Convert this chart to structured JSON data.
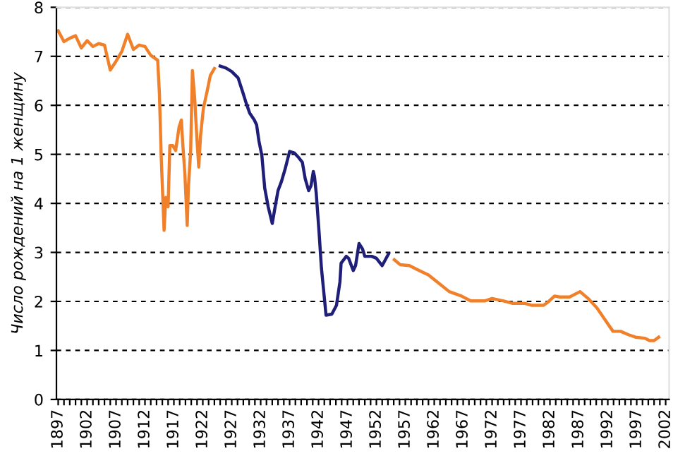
{
  "chart_data": {
    "type": "line",
    "ylabel": "Число рождений на 1 женщину",
    "series": [
      {
        "color": "#f0802a",
        "x": [
          1897,
          1898,
          1899,
          1900,
          1901,
          1902,
          1903,
          1904,
          1905,
          1906,
          1907,
          1908,
          1909,
          1910,
          1911,
          1912,
          1913,
          1914.2,
          1914.5,
          1914.8,
          1915.3,
          1915.6,
          1916.0,
          1916.3,
          1916.8,
          1917.3,
          1917.9,
          1918.3,
          1918.5,
          1918.9,
          1919.3,
          1919.5,
          1919.9,
          1920.2,
          1920.6,
          1921.0,
          1921.3,
          1921.6,
          1922.1,
          1922.8,
          1923.3,
          1924.0
        ],
        "values": [
          7.52,
          7.3,
          7.37,
          7.42,
          7.17,
          7.32,
          7.2,
          7.26,
          7.23,
          6.72,
          6.9,
          7.1,
          7.45,
          7.14,
          7.23,
          7.2,
          7.02,
          6.92,
          6.23,
          4.98,
          3.45,
          4.12,
          3.93,
          5.18,
          5.18,
          5.08,
          5.56,
          5.7,
          5.27,
          4.6,
          3.55,
          4.31,
          5.08,
          6.71,
          6.13,
          5.27,
          4.74,
          5.37,
          5.94,
          6.32,
          6.61,
          6.75
        ]
      },
      {
        "color": "#1f1f7a",
        "x": [
          1925.0,
          1926.0,
          1927.0,
          1928.1,
          1928.9,
          1929.4,
          1930.1,
          1930.9,
          1931.3,
          1931.7,
          1932.2,
          1932.7,
          1933.3,
          1934.0,
          1934.5,
          1935.0,
          1935.6,
          1936.2,
          1937.0,
          1937.8,
          1938.6,
          1939.2,
          1939.7,
          1940.3,
          1940.7,
          1941.1,
          1941.3,
          1941.6,
          1942.1,
          1942.5,
          1942.9,
          1943.3,
          1944.3,
          1945.1,
          1945.7,
          1945.9,
          1946.8,
          1947.2,
          1948.0,
          1948.4,
          1949.0,
          1949.6,
          1950.0,
          1951.2,
          1952.0,
          1953.0,
          1954.1
        ],
        "values": [
          6.8,
          6.76,
          6.69,
          6.56,
          6.27,
          6.08,
          5.84,
          5.7,
          5.6,
          5.27,
          4.98,
          4.31,
          3.93,
          3.59,
          3.93,
          4.26,
          4.45,
          4.69,
          5.06,
          5.03,
          4.93,
          4.84,
          4.5,
          4.26,
          4.36,
          4.65,
          4.55,
          4.21,
          3.4,
          2.68,
          2.2,
          1.72,
          1.74,
          1.92,
          2.4,
          2.78,
          2.92,
          2.88,
          2.63,
          2.73,
          3.18,
          3.07,
          2.92,
          2.92,
          2.88,
          2.73,
          2.97
        ]
      },
      {
        "color": "#f0802a",
        "x": [
          1955.1,
          1956.1,
          1957.7,
          1959.4,
          1961.0,
          1962.6,
          1964.6,
          1966.7,
          1968.3,
          1970.7,
          1972.0,
          1974.0,
          1975.6,
          1977.7,
          1978.9,
          1980.9,
          1981.7,
          1982.8,
          1983.7,
          1985.4,
          1987.2,
          1988.6,
          1990.1,
          1991.5,
          1992.9,
          1994.2,
          1995.6,
          1996.8,
          1998.4,
          1999.2,
          2000.0,
          2000.8
        ],
        "values": [
          2.85,
          2.75,
          2.73,
          2.63,
          2.54,
          2.39,
          2.2,
          2.11,
          2.01,
          2.01,
          2.06,
          2.01,
          1.96,
          1.96,
          1.92,
          1.92,
          1.99,
          2.11,
          2.09,
          2.09,
          2.2,
          2.06,
          1.87,
          1.63,
          1.39,
          1.39,
          1.32,
          1.27,
          1.25,
          1.2,
          1.2,
          1.27
        ]
      }
    ],
    "xlim": [
      1896.7,
      2002.6
    ],
    "xticks": [
      1897,
      {
        "value": 1898,
        "label": null
      },
      {
        "value": 1899,
        "label": null
      },
      {
        "value": 1900,
        "label": null
      },
      {
        "value": 1901,
        "label": null
      },
      1902,
      {
        "value": 1903,
        "label": null
      },
      {
        "value": 1904,
        "label": null
      },
      {
        "value": 1905,
        "label": null
      },
      {
        "value": 1906,
        "label": null
      },
      1907,
      {
        "value": 1908,
        "label": null
      },
      {
        "value": 1909,
        "label": null
      },
      {
        "value": 1910,
        "label": null
      },
      {
        "value": 1911,
        "label": null
      },
      1912,
      {
        "value": 1913,
        "label": null
      },
      {
        "value": 1914,
        "label": null
      },
      {
        "value": 1915,
        "label": null
      },
      {
        "value": 1916,
        "label": null
      },
      1917,
      {
        "value": 1918,
        "label": null
      },
      {
        "value": 1919,
        "label": null
      },
      {
        "value": 1920,
        "label": null
      },
      {
        "value": 1921,
        "label": null
      },
      1922,
      {
        "value": 1923,
        "label": null
      },
      {
        "value": 1924,
        "label": null
      },
      {
        "value": 1925,
        "label": null
      },
      {
        "value": 1926,
        "label": null
      },
      1927,
      {
        "value": 1928,
        "label": null
      },
      {
        "value": 1929,
        "label": null
      },
      {
        "value": 1930,
        "label": null
      },
      {
        "value": 1931,
        "label": null
      },
      1932,
      {
        "value": 1933,
        "label": null
      },
      {
        "value": 1934,
        "label": null
      },
      {
        "value": 1935,
        "label": null
      },
      {
        "value": 1936,
        "label": null
      },
      1937,
      {
        "value": 1938,
        "label": null
      },
      {
        "value": 1939,
        "label": null
      },
      {
        "value": 1940,
        "label": null
      },
      {
        "value": 1941,
        "label": null
      },
      1942,
      {
        "value": 1943,
        "label": null
      },
      {
        "value": 1944,
        "label": null
      },
      {
        "value": 1945,
        "label": null
      },
      {
        "value": 1946,
        "label": null
      },
      1947,
      {
        "value": 1948,
        "label": null
      },
      {
        "value": 1949,
        "label": null
      },
      {
        "value": 1950,
        "label": null
      },
      {
        "value": 1951,
        "label": null
      },
      1952,
      {
        "value": 1953,
        "label": null
      },
      {
        "value": 1954,
        "label": null
      },
      {
        "value": 1955,
        "label": null
      },
      {
        "value": 1956,
        "label": null
      },
      1957,
      {
        "value": 1958,
        "label": null
      },
      {
        "value": 1959,
        "label": null
      },
      {
        "value": 1960,
        "label": null
      },
      {
        "value": 1961,
        "label": null
      },
      1962,
      {
        "value": 1963,
        "label": null
      },
      {
        "value": 1964,
        "label": null
      },
      {
        "value": 1965,
        "label": null
      },
      {
        "value": 1966,
        "label": null
      },
      1967,
      {
        "value": 1968,
        "label": null
      },
      {
        "value": 1969,
        "label": null
      },
      {
        "value": 1970,
        "label": null
      },
      {
        "value": 1971,
        "label": null
      },
      1972,
      {
        "value": 1973,
        "label": null
      },
      {
        "value": 1974,
        "label": null
      },
      {
        "value": 1975,
        "label": null
      },
      {
        "value": 1976,
        "label": null
      },
      1977,
      {
        "value": 1978,
        "label": null
      },
      {
        "value": 1979,
        "label": null
      },
      {
        "value": 1980,
        "label": null
      },
      {
        "value": 1981,
        "label": null
      },
      1982,
      {
        "value": 1983,
        "label": null
      },
      {
        "value": 1984,
        "label": null
      },
      {
        "value": 1985,
        "label": null
      },
      {
        "value": 1986,
        "label": null
      },
      1987,
      {
        "value": 1988,
        "label": null
      },
      {
        "value": 1989,
        "label": null
      },
      {
        "value": 1990,
        "label": null
      },
      {
        "value": 1991,
        "label": null
      },
      1992,
      {
        "value": 1993,
        "label": null
      },
      {
        "value": 1994,
        "label": null
      },
      {
        "value": 1995,
        "label": null
      },
      {
        "value": 1996,
        "label": null
      },
      1997,
      {
        "value": 1998,
        "label": null
      },
      {
        "value": 1999,
        "label": null
      },
      {
        "value": 2000,
        "label": null
      },
      {
        "value": 2001,
        "label": null
      },
      2002
    ],
    "ylim": [
      0,
      8
    ],
    "yticks": [
      0,
      1,
      2,
      3,
      4,
      5,
      6,
      7,
      8
    ],
    "grid": "y",
    "line_style": "solid",
    "marker": "none",
    "legend": false
  }
}
